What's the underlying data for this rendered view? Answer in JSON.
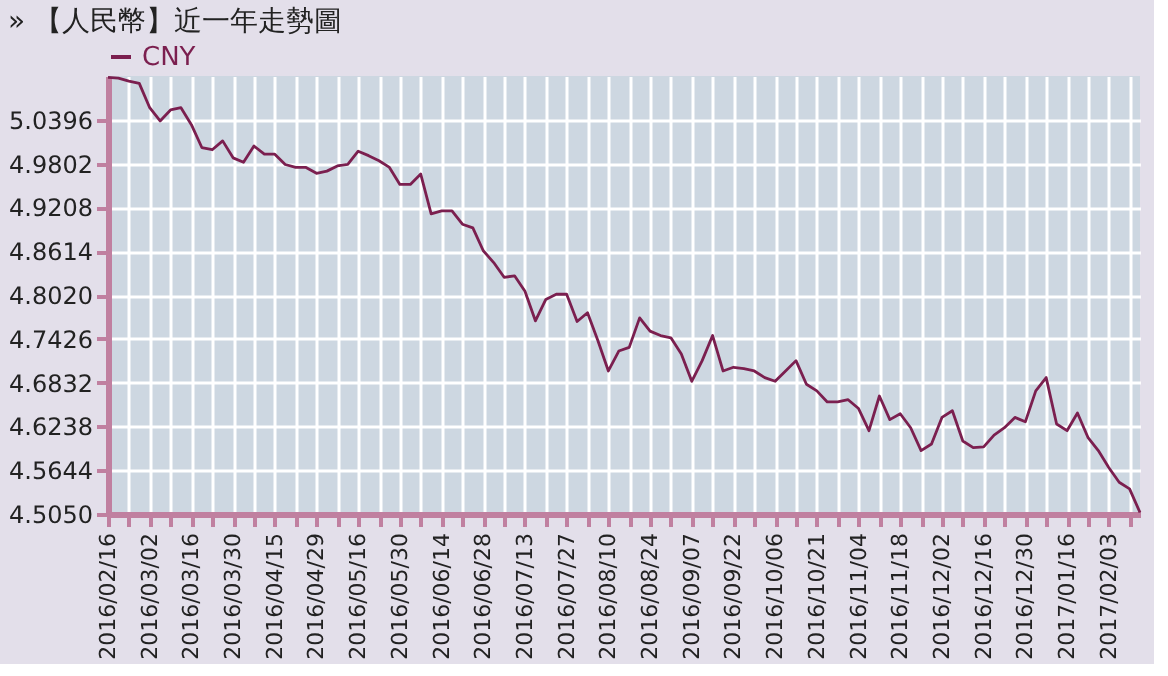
{
  "chart_data": {
    "type": "line",
    "title": "» 【人民幣】近一年走勢圖",
    "categories": [
      "2016/02/16",
      null,
      null,
      null,
      "2016/03/02",
      null,
      null,
      null,
      "2016/03/16",
      null,
      null,
      null,
      "2016/03/30",
      null,
      null,
      null,
      "2016/04/15",
      null,
      null,
      null,
      "2016/04/29",
      null,
      null,
      null,
      "2016/05/16",
      null,
      null,
      null,
      "2016/05/30",
      null,
      null,
      null,
      "2016/06/14",
      null,
      null,
      null,
      "2016/06/28",
      null,
      null,
      null,
      "2016/07/13",
      null,
      null,
      null,
      "2016/07/27",
      null,
      null,
      null,
      "2016/08/10",
      null,
      null,
      null,
      "2016/08/24",
      null,
      null,
      null,
      "2016/09/07",
      null,
      null,
      null,
      "2016/09/22",
      null,
      null,
      null,
      "2016/10/06",
      null,
      null,
      null,
      "2016/10/21",
      null,
      null,
      null,
      "2016/11/04",
      null,
      null,
      null,
      "2016/11/18",
      null,
      null,
      null,
      "2016/12/02",
      null,
      null,
      null,
      "2016/12/16",
      null,
      null,
      null,
      "2016/12/30",
      null,
      null,
      null,
      "2017/01/16",
      null,
      null,
      null,
      "2017/02/03",
      null,
      null,
      null
    ],
    "series": [
      {
        "name": "CNY",
        "color": "#7b1f4f",
        "values": [
          5.097,
          5.096,
          5.092,
          5.089,
          5.056,
          5.038,
          5.053,
          5.056,
          5.033,
          5.002,
          4.999,
          5.011,
          4.988,
          4.982,
          5.004,
          4.993,
          4.993,
          4.979,
          4.975,
          4.975,
          4.967,
          4.97,
          4.977,
          4.979,
          4.997,
          4.991,
          4.984,
          4.975,
          4.952,
          4.952,
          4.966,
          4.912,
          4.916,
          4.916,
          4.898,
          4.893,
          4.862,
          4.846,
          4.826,
          4.828,
          4.807,
          4.767,
          4.796,
          4.803,
          4.803,
          4.766,
          4.778,
          4.74,
          4.699,
          4.726,
          4.731,
          4.771,
          4.753,
          4.747,
          4.744,
          4.722,
          4.685,
          4.713,
          4.747,
          4.699,
          4.704,
          4.702,
          4.699,
          4.69,
          4.685,
          4.699,
          4.713,
          4.681,
          4.672,
          4.657,
          4.657,
          4.66,
          4.648,
          4.618,
          4.665,
          4.633,
          4.641,
          4.622,
          4.591,
          4.6,
          4.636,
          4.645,
          4.604,
          4.595,
          4.596,
          4.612,
          4.622,
          4.636,
          4.63,
          4.672,
          4.69,
          4.627,
          4.618,
          4.642,
          4.609,
          4.591,
          4.568,
          4.548,
          4.539,
          4.507
        ]
      }
    ],
    "ylim": [
      4.505,
      5.099
    ],
    "yticks": [
      {
        "value": 4.505,
        "label": "4.5050"
      },
      4.5644,
      4.6238,
      4.6832,
      4.7426,
      {
        "value": 4.802,
        "label": "4.8020"
      },
      4.8614,
      4.9208,
      4.9802,
      5.0396
    ],
    "grid": true,
    "legend": "top left",
    "marker": "none",
    "line_style": "solid"
  }
}
